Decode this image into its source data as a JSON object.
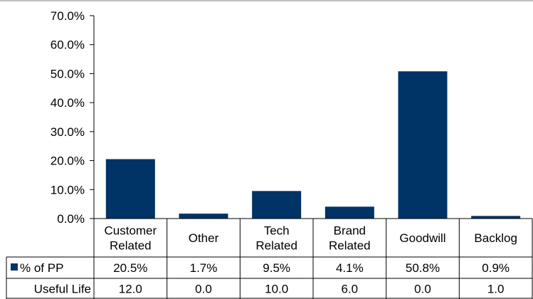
{
  "chart_data": {
    "type": "bar",
    "categories": [
      [
        "Customer",
        "Related"
      ],
      [
        "Other"
      ],
      [
        "Tech",
        "Related"
      ],
      [
        "Brand",
        "Related"
      ],
      [
        "Goodwill"
      ],
      [
        "Backlog"
      ]
    ],
    "yticks": [
      "0.0%",
      "10.0%",
      "20.0%",
      "30.0%",
      "40.0%",
      "50.0%",
      "60.0%",
      "70.0%"
    ],
    "ylim": [
      0,
      70
    ],
    "grid": false,
    "series": [
      {
        "name": "% of PP",
        "values": [
          20.5,
          1.7,
          9.5,
          4.1,
          50.8,
          0.9
        ]
      }
    ],
    "table": {
      "rows": [
        {
          "label": "% of PP",
          "values": [
            "20.5%",
            "1.7%",
            "9.5%",
            "4.1%",
            "50.8%",
            "0.9%"
          ],
          "legend_key": true
        },
        {
          "label": "Useful Life",
          "values": [
            "12.0",
            "0.0",
            "10.0",
            "6.0",
            "0.0",
            "1.0"
          ],
          "legend_key": false
        }
      ]
    }
  },
  "colors": {
    "bar": "#003366",
    "axis": "#000000",
    "top_rule": "#c0c0c0"
  }
}
